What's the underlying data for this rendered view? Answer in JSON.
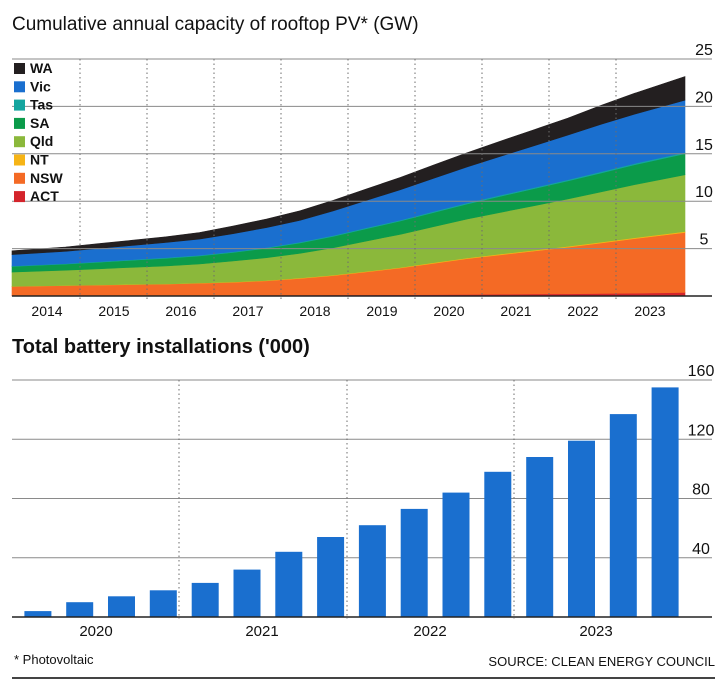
{
  "chart_data": [
    {
      "type": "area",
      "title": "Cumulative annual capacity of rooftop PV* (GW)",
      "xlabel": "",
      "ylabel": "",
      "x_ticks": [
        "2014",
        "2015",
        "2016",
        "2017",
        "2018",
        "2019",
        "2020",
        "2021",
        "2022",
        "2023"
      ],
      "x": [
        2013.7,
        2014.5,
        2015.0,
        2015.5,
        2016.0,
        2016.5,
        2017.0,
        2017.5,
        2018.0,
        2018.5,
        2019.0,
        2019.5,
        2020.0,
        2020.5,
        2021.0,
        2021.5,
        2022.0,
        2022.5,
        2023.0,
        2023.75
      ],
      "ylim": [
        0,
        25
      ],
      "y_ticks": [
        5,
        10,
        15,
        20,
        25
      ],
      "stacked": true,
      "legend_position": "top-left",
      "grid": true,
      "series": [
        {
          "name": "ACT",
          "color": "#d4242b",
          "values": [
            0.05,
            0.06,
            0.06,
            0.07,
            0.07,
            0.08,
            0.08,
            0.09,
            0.1,
            0.11,
            0.12,
            0.13,
            0.15,
            0.17,
            0.19,
            0.21,
            0.23,
            0.26,
            0.3,
            0.38
          ]
        },
        {
          "name": "NSW",
          "color": "#f46a25",
          "values": [
            0.95,
            1.04,
            1.09,
            1.13,
            1.18,
            1.27,
            1.37,
            1.51,
            1.75,
            2.04,
            2.43,
            2.82,
            3.3,
            3.78,
            4.16,
            4.54,
            4.92,
            5.34,
            5.75,
            6.32
          ]
        },
        {
          "name": "NT",
          "color": "#f6b416",
          "values": [
            0.02,
            0.02,
            0.02,
            0.03,
            0.03,
            0.03,
            0.04,
            0.04,
            0.05,
            0.05,
            0.06,
            0.06,
            0.07,
            0.07,
            0.08,
            0.08,
            0.09,
            0.09,
            0.1,
            0.1
          ]
        },
        {
          "name": "Qld",
          "color": "#8bb83b",
          "values": [
            1.5,
            1.6,
            1.7,
            1.8,
            1.9,
            2.0,
            2.2,
            2.4,
            2.6,
            2.9,
            3.2,
            3.5,
            3.8,
            4.1,
            4.4,
            4.7,
            5.0,
            5.3,
            5.6,
            6.0
          ]
        },
        {
          "name": "SA",
          "color": "#0b9b4a",
          "values": [
            0.6,
            0.65,
            0.7,
            0.75,
            0.8,
            0.85,
            0.9,
            1.0,
            1.1,
            1.2,
            1.3,
            1.4,
            1.5,
            1.6,
            1.7,
            1.8,
            1.9,
            2.0,
            2.1,
            2.2
          ]
        },
        {
          "name": "Tas",
          "color": "#14a59f",
          "values": [
            0.05,
            0.05,
            0.06,
            0.06,
            0.07,
            0.07,
            0.08,
            0.08,
            0.09,
            0.09,
            0.1,
            0.1,
            0.11,
            0.11,
            0.12,
            0.12,
            0.13,
            0.13,
            0.14,
            0.15
          ]
        },
        {
          "name": "Vic",
          "color": "#1a6fcf",
          "values": [
            1.2,
            1.3,
            1.4,
            1.5,
            1.6,
            1.7,
            1.9,
            2.1,
            2.3,
            2.6,
            2.9,
            3.2,
            3.5,
            3.8,
            4.1,
            4.4,
            4.7,
            5.0,
            5.2,
            5.5
          ]
        },
        {
          "name": "WA",
          "color": "#231f20",
          "values": [
            0.4,
            0.45,
            0.5,
            0.55,
            0.6,
            0.7,
            0.8,
            0.9,
            1.0,
            1.1,
            1.2,
            1.3,
            1.4,
            1.5,
            1.6,
            1.7,
            1.8,
            2.0,
            2.2,
            2.5
          ]
        }
      ]
    },
    {
      "type": "bar",
      "title": "Total battery installations ('000)",
      "xlabel": "",
      "ylabel": "",
      "ylim": [
        0,
        160
      ],
      "y_ticks": [
        40,
        80,
        120,
        160
      ],
      "color": "#1a6fcf",
      "year_labels": [
        "2020",
        "2021",
        "2022",
        "2023"
      ],
      "bars_per_year": 4,
      "values": [
        4,
        10,
        14,
        18,
        23,
        32,
        44,
        54,
        62,
        73,
        84,
        98,
        108,
        119,
        137,
        155
      ]
    }
  ],
  "footnote": "* Photovoltaic",
  "source": "SOURCE: CLEAN ENERGY COUNCIL"
}
